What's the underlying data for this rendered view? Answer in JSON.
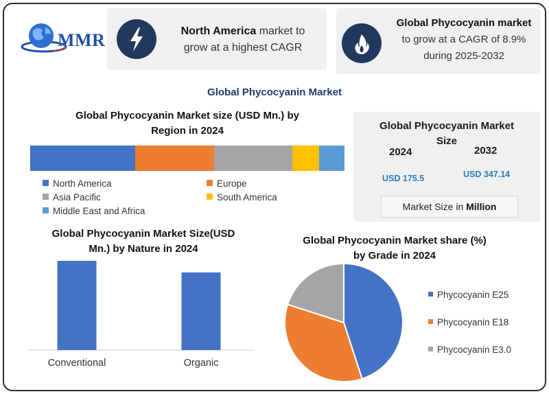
{
  "brand": {
    "logo_text": "MMR"
  },
  "header": {
    "na_card": {
      "bold": "North America",
      "rest_line1": " market to",
      "line2": "grow at a highest CAGR"
    },
    "global_card": {
      "bold": "Global Phycocyanin market",
      "line2": "to grow at a CAGR of 8.9%",
      "line3": "during 2025-2032"
    }
  },
  "main_title": "Global Phycocyanin Market",
  "market_size": {
    "title_line1": "Global Phycocyanin Market",
    "title_line2": "Size",
    "year1": "2024",
    "year2": "2032",
    "value1": "USD 175.5",
    "value2": "USD 347.14",
    "unit_prefix": "Market Size in ",
    "unit_bold": "Million"
  },
  "colors": {
    "north_america": "#4472c4",
    "europe": "#ed7d31",
    "asia_pacific": "#a5a5a5",
    "south_america": "#ffc000",
    "mea": "#5b9bd5",
    "nature_bar": "#4472c4",
    "icon_bg": "#22395e"
  },
  "chart_data": [
    {
      "type": "bar",
      "stacked": true,
      "orientation": "horizontal",
      "title_line1": "Global Phycocyanin Market size (USD Mn.) by",
      "title_line2": "Region in 2024",
      "series": [
        {
          "name": "North America",
          "value": 33.5
        },
        {
          "name": "Europe",
          "value": 25
        },
        {
          "name": "Asia Pacific",
          "value": 25
        },
        {
          "name": "South America",
          "value": 8.5
        },
        {
          "name": "Middle East and Africa",
          "value": 8
        }
      ],
      "legend_position": "bottom",
      "grid": false
    },
    {
      "type": "bar",
      "title_line1": "Global Phycocyanin Market Size(USD",
      "title_line2": "Mn.) by Nature in 2024",
      "categories": [
        "Conventional",
        "Organic"
      ],
      "values": [
        100,
        87
      ],
      "ylim": [
        0,
        100
      ],
      "grid": false
    },
    {
      "type": "pie",
      "title_line1": "Global Phycocyanin Market share (%)",
      "title_line2": "by Grade in 2024",
      "labels": [
        "Phycocyanin E25",
        "Phycocyanin E18",
        "Phycocyanin E3.0"
      ],
      "values": [
        45,
        35,
        20
      ],
      "colors": [
        "#4472c4",
        "#ed7d31",
        "#a5a5a5"
      ],
      "legend_position": "right"
    }
  ]
}
